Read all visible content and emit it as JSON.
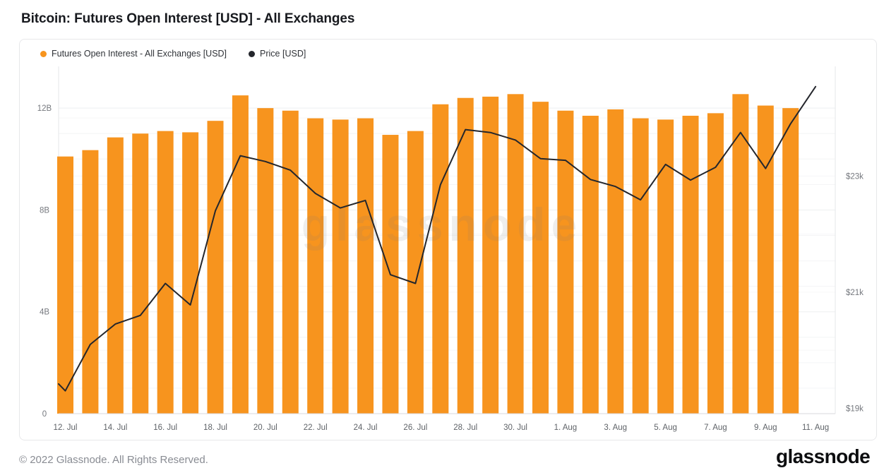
{
  "header": {
    "title": "Bitcoin: Futures Open Interest [USD] - All Exchanges"
  },
  "legend": {
    "items": [
      {
        "label": "Futures Open Interest - All Exchanges [USD]",
        "color": "#F7941E",
        "marker": "circle"
      },
      {
        "label": "Price [USD]",
        "color": "#24262C",
        "marker": "circle"
      }
    ]
  },
  "watermark": {
    "text": "glassnode"
  },
  "footer": {
    "copyright": "© 2022 Glassnode. All Rights Reserved.",
    "brand_wordmark": "glassnode"
  },
  "colors": {
    "bar": "#F7941E",
    "line": "#24262C",
    "axis_text": "#75787e",
    "grid_minor": "#f4f5f6",
    "grid_major": "#edeff1",
    "grid_price": "#f6f7f8",
    "plot_border": "#e5e7ea",
    "baseline": "#d8dadd",
    "card_border": "#e7e8ea"
  },
  "chart_data": {
    "type": "bar+line",
    "title": "Bitcoin: Futures Open Interest [USD] - All Exchanges",
    "legend_position": "top-left",
    "grid": "horizontal, faint",
    "categories": [
      "12. Jul",
      "13. Jul",
      "14. Jul",
      "15. Jul",
      "16. Jul",
      "17. Jul",
      "18. Jul",
      "19. Jul",
      "20. Jul",
      "21. Jul",
      "22. Jul",
      "23. Jul",
      "24. Jul",
      "25. Jul",
      "26. Jul",
      "27. Jul",
      "28. Jul",
      "29. Jul",
      "30. Jul",
      "31. Jul",
      "1. Aug",
      "2. Aug",
      "3. Aug",
      "4. Aug",
      "5. Aug",
      "6. Aug",
      "7. Aug",
      "8. Aug",
      "9. Aug",
      "10. Aug",
      "11. Aug"
    ],
    "x_tick_labels": [
      "12. Jul",
      "14. Jul",
      "16. Jul",
      "18. Jul",
      "20. Jul",
      "22. Jul",
      "24. Jul",
      "26. Jul",
      "28. Jul",
      "30. Jul",
      "1. Aug",
      "3. Aug",
      "5. Aug",
      "7. Aug",
      "9. Aug",
      "11. Aug"
    ],
    "series": [
      {
        "name": "Futures Open Interest - All Exchanges [USD]",
        "type": "bar",
        "axis": "left",
        "unit": "billions USD",
        "color": "#F7941E",
        "values": [
          10.1,
          10.35,
          10.85,
          11.0,
          11.1,
          11.05,
          11.5,
          12.5,
          12.0,
          11.9,
          11.6,
          11.55,
          11.6,
          10.95,
          11.1,
          12.15,
          12.4,
          12.45,
          12.55,
          12.25,
          11.9,
          11.7,
          11.95,
          11.6,
          11.55,
          11.7,
          11.8,
          12.55,
          12.1,
          12.0,
          null
        ]
      },
      {
        "name": "Price [USD]",
        "type": "line",
        "axis": "right",
        "unit": "USD",
        "color": "#24262C",
        "values": [
          19300,
          20100,
          20450,
          20600,
          21150,
          20780,
          22400,
          23350,
          23250,
          23100,
          22700,
          22450,
          22580,
          21300,
          21150,
          22850,
          23800,
          23750,
          23620,
          23300,
          23270,
          22940,
          22820,
          22590,
          23200,
          22930,
          23150,
          23750,
          23130,
          23900,
          24540
        ],
        "lead_in_clip_value": 19420
      }
    ],
    "left_axis": {
      "tick_labels": [
        "0",
        "4B",
        "8B",
        "12B"
      ],
      "tick_values": [
        0,
        4,
        8,
        12
      ],
      "range": [
        0,
        13.6
      ]
    },
    "right_axis": {
      "tick_labels": [
        "$19k",
        "$21k",
        "$23k"
      ],
      "tick_values": [
        19000,
        21000,
        23000
      ],
      "range": [
        19000,
        24900
      ]
    }
  }
}
